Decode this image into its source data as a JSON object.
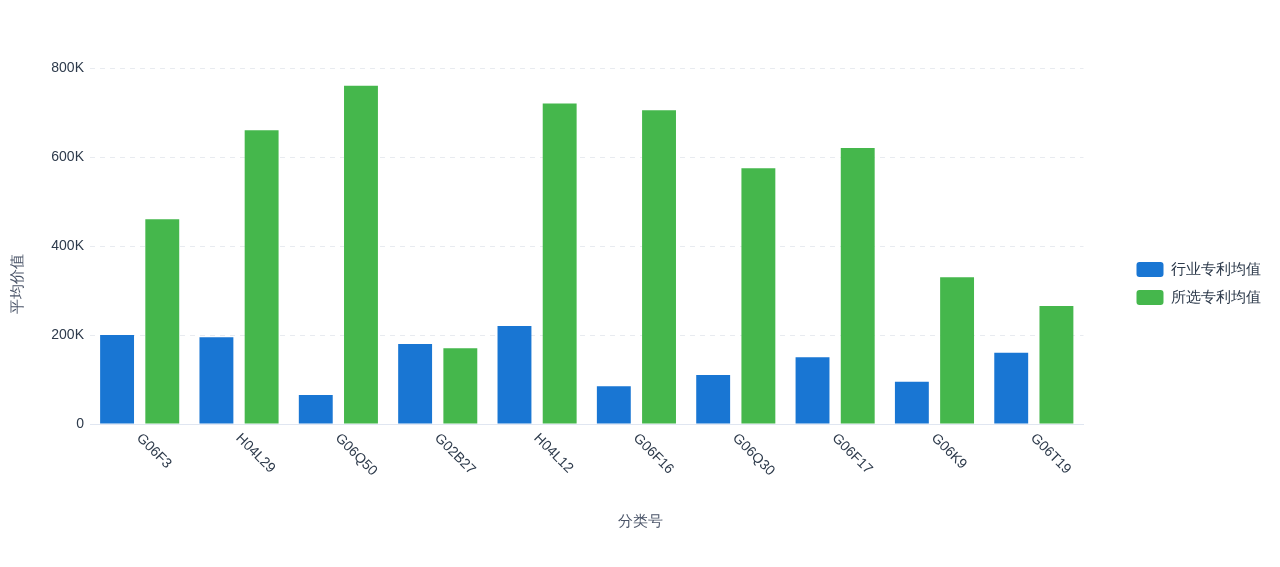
{
  "chart_data": {
    "type": "bar",
    "xlabel": "分类号",
    "ylabel": "平均价值",
    "categories": [
      "G06F3",
      "H04L29",
      "G06Q50",
      "G02B27",
      "H04L12",
      "G06F16",
      "G06Q30",
      "G06F17",
      "G06K9",
      "G06T19"
    ],
    "series": [
      {
        "name": "行业专利均值",
        "color": "#1976d3",
        "values": [
          200000,
          195000,
          65000,
          180000,
          220000,
          85000,
          110000,
          150000,
          95000,
          160000
        ]
      },
      {
        "name": "所选专利均值",
        "color": "#45b74c",
        "values": [
          460000,
          660000,
          760000,
          170000,
          720000,
          705000,
          575000,
          620000,
          330000,
          265000
        ]
      }
    ],
    "ylim": [
      0,
      800000
    ],
    "yticks": [
      0,
      {
        "value": 200000,
        "label": "200K"
      },
      {
        "value": 400000,
        "label": "400K"
      },
      {
        "value": 600000,
        "label": "600K"
      },
      {
        "value": 800000,
        "label": "800K"
      }
    ],
    "grid": "y",
    "legend": "right"
  }
}
